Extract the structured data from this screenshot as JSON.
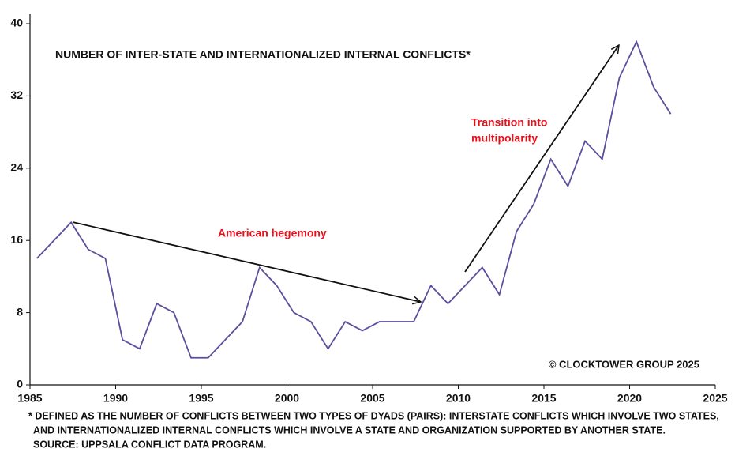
{
  "chart_data": {
    "type": "line",
    "title": "NUMBER OF INTER-STATE AND INTERNATIONALIZED INTERNAL CONFLICTS*",
    "x": [
      1985.4,
      1987.4,
      1988.4,
      1989.4,
      1990.4,
      1991.4,
      1992.4,
      1993.4,
      1994.4,
      1995.4,
      1996.4,
      1997.4,
      1998.4,
      1999.4,
      2000.4,
      2001.4,
      2002.4,
      2003.4,
      2004.4,
      2005.4,
      2006.4,
      2007.4,
      2008.4,
      2009.4,
      2010.4,
      2011.4,
      2012.4,
      2013.4,
      2014.4,
      2015.4,
      2016.4,
      2017.4,
      2018.4,
      2019.4,
      2020.4,
      2021.4,
      2022.4
    ],
    "series": [
      {
        "color": "#5b4f9e",
        "values": [
          14,
          18,
          15,
          14,
          5,
          4,
          9,
          8,
          3,
          3,
          5,
          7,
          13,
          11,
          8,
          7,
          4,
          7,
          6,
          7,
          7,
          7,
          11,
          9,
          11,
          13,
          10,
          17,
          20,
          25,
          22,
          27,
          25,
          34,
          38,
          33,
          30
        ]
      }
    ],
    "xlim": [
      1985,
      2025
    ],
    "xticks": [
      1985,
      1990,
      1995,
      2000,
      2005,
      2010,
      2015,
      2020,
      2025
    ],
    "ylim": [
      0,
      40
    ],
    "yticks": [
      0,
      8,
      16,
      24,
      32,
      40
    ],
    "annotations": [
      "American hegemony",
      "Transition into",
      "multipolarity"
    ],
    "credit": "© CLOCKTOWER GROUP 2025",
    "footnote": [
      "* DEFINED AS THE NUMBER OF CONFLICTS BETWEEN TWO TYPES OF DYADS (PAIRS): INTERSTATE CONFLICTS WHICH INVOLVE TWO STATES,",
      "AND INTERNATIONALIZED INTERNAL CONFLICTS WHICH INVOLVE A STATE AND ORGANIZATION SUPPORTED BY ANOTHER STATE.",
      "SOURCE: UPPSALA CONFLICT DATA PROGRAM."
    ]
  }
}
